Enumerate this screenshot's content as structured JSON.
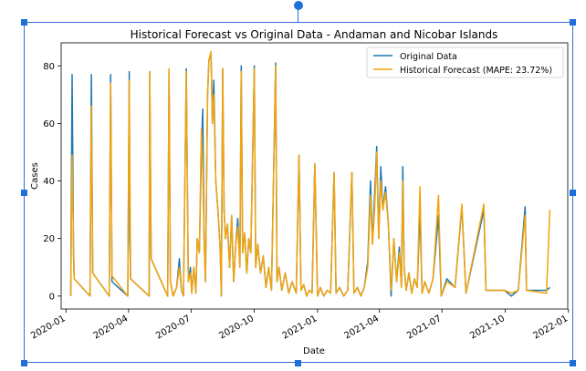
{
  "chart_data": {
    "type": "line",
    "title": "Historical Forecast vs Original Data - Andaman  and Nicobar Islands",
    "xlabel": "Date",
    "ylabel": "Cases",
    "xlim": [
      "2019-12-25",
      "2021-12-31"
    ],
    "ylim": [
      -4.5,
      88
    ],
    "yticks": [
      0,
      20,
      40,
      60,
      80
    ],
    "xticks": [
      {
        "date": "2020-01-01",
        "label": "2020-01"
      },
      {
        "date": "2020-04-01",
        "label": "2020-04"
      },
      {
        "date": "2020-07-01",
        "label": "2020-07"
      },
      {
        "date": "2020-10-01",
        "label": "2020-10"
      },
      {
        "date": "2021-01-01",
        "label": "2021-01"
      },
      {
        "date": "2021-04-01",
        "label": "2021-04"
      },
      {
        "date": "2021-07-01",
        "label": "2021-07"
      },
      {
        "date": "2021-10-01",
        "label": "2021-10"
      },
      {
        "date": "2022-01-01",
        "label": "2022-01"
      }
    ],
    "legend_position": "top-right",
    "series": [
      {
        "name": "Original Data",
        "color": "#1f77b4",
        "points": [
          [
            "2020-01-08",
            0
          ],
          [
            "2020-01-10",
            77
          ],
          [
            "2020-01-12",
            14
          ],
          [
            "2020-01-13",
            6
          ],
          [
            "2020-02-05",
            0
          ],
          [
            "2020-02-07",
            77
          ],
          [
            "2020-02-09",
            8
          ],
          [
            "2020-03-04",
            0
          ],
          [
            "2020-03-06",
            77
          ],
          [
            "2020-03-08",
            5
          ],
          [
            "2020-03-31",
            0
          ],
          [
            "2020-04-02",
            78
          ],
          [
            "2020-04-03",
            20
          ],
          [
            "2020-04-04",
            6
          ],
          [
            "2020-05-01",
            0
          ],
          [
            "2020-05-02",
            78
          ],
          [
            "2020-05-04",
            13
          ],
          [
            "2020-05-28",
            0
          ],
          [
            "2020-05-30",
            78
          ],
          [
            "2020-06-01",
            5
          ],
          [
            "2020-06-05",
            0
          ],
          [
            "2020-06-10",
            3
          ],
          [
            "2020-06-14",
            13
          ],
          [
            "2020-06-17",
            2
          ],
          [
            "2020-06-20",
            0
          ],
          [
            "2020-06-24",
            79
          ],
          [
            "2020-06-27",
            5
          ],
          [
            "2020-06-30",
            10
          ],
          [
            "2020-07-02",
            1
          ],
          [
            "2020-07-05",
            10
          ],
          [
            "2020-07-08",
            1
          ],
          [
            "2020-07-10",
            20
          ],
          [
            "2020-07-13",
            15
          ],
          [
            "2020-07-16",
            50
          ],
          [
            "2020-07-18",
            65
          ],
          [
            "2020-07-20",
            20
          ],
          [
            "2020-07-22",
            5
          ],
          [
            "2020-07-25",
            70
          ],
          [
            "2020-07-27",
            82
          ],
          [
            "2020-07-30",
            84
          ],
          [
            "2020-08-01",
            60
          ],
          [
            "2020-08-03",
            75
          ],
          [
            "2020-08-06",
            40
          ],
          [
            "2020-08-09",
            30
          ],
          [
            "2020-08-12",
            18
          ],
          [
            "2020-08-14",
            0
          ],
          [
            "2020-08-16",
            79
          ],
          [
            "2020-08-18",
            30
          ],
          [
            "2020-08-20",
            20
          ],
          [
            "2020-08-23",
            25
          ],
          [
            "2020-08-26",
            10
          ],
          [
            "2020-08-29",
            28
          ],
          [
            "2020-09-01",
            5
          ],
          [
            "2020-09-04",
            18
          ],
          [
            "2020-09-07",
            27
          ],
          [
            "2020-09-10",
            10
          ],
          [
            "2020-09-12",
            80
          ],
          [
            "2020-09-14",
            15
          ],
          [
            "2020-09-17",
            22
          ],
          [
            "2020-09-20",
            8
          ],
          [
            "2020-09-23",
            20
          ],
          [
            "2020-09-26",
            15
          ],
          [
            "2020-10-01",
            80
          ],
          [
            "2020-10-03",
            10
          ],
          [
            "2020-10-06",
            18
          ],
          [
            "2020-10-10",
            8
          ],
          [
            "2020-10-14",
            14
          ],
          [
            "2020-10-18",
            3
          ],
          [
            "2020-10-22",
            10
          ],
          [
            "2020-10-26",
            2
          ],
          [
            "2020-11-01",
            81
          ],
          [
            "2020-11-03",
            5
          ],
          [
            "2020-11-06",
            10
          ],
          [
            "2020-11-10",
            2
          ],
          [
            "2020-11-15",
            8
          ],
          [
            "2020-11-20",
            1
          ],
          [
            "2020-11-25",
            5
          ],
          [
            "2020-12-01",
            1
          ],
          [
            "2020-12-05",
            49
          ],
          [
            "2020-12-08",
            2
          ],
          [
            "2020-12-12",
            4
          ],
          [
            "2020-12-16",
            0
          ],
          [
            "2020-12-20",
            2
          ],
          [
            "2020-12-24",
            1
          ],
          [
            "2020-12-28",
            46
          ],
          [
            "2021-01-01",
            0
          ],
          [
            "2021-01-05",
            3
          ],
          [
            "2021-01-10",
            0
          ],
          [
            "2021-01-15",
            2
          ],
          [
            "2021-01-20",
            1
          ],
          [
            "2021-01-25",
            43
          ],
          [
            "2021-01-28",
            1
          ],
          [
            "2021-02-02",
            3
          ],
          [
            "2021-02-08",
            0
          ],
          [
            "2021-02-14",
            2
          ],
          [
            "2021-02-20",
            43
          ],
          [
            "2021-02-23",
            1
          ],
          [
            "2021-02-28",
            3
          ],
          [
            "2021-03-05",
            0
          ],
          [
            "2021-03-10",
            3
          ],
          [
            "2021-03-15",
            12
          ],
          [
            "2021-03-19",
            40
          ],
          [
            "2021-03-22",
            18
          ],
          [
            "2021-03-25",
            35
          ],
          [
            "2021-03-28",
            52
          ],
          [
            "2021-03-31",
            20
          ],
          [
            "2021-04-03",
            45
          ],
          [
            "2021-04-06",
            30
          ],
          [
            "2021-04-10",
            38
          ],
          [
            "2021-04-14",
            25
          ],
          [
            "2021-04-18",
            0
          ],
          [
            "2021-04-22",
            20
          ],
          [
            "2021-04-26",
            5
          ],
          [
            "2021-04-30",
            17
          ],
          [
            "2021-05-03",
            3
          ],
          [
            "2021-05-05",
            45
          ],
          [
            "2021-05-07",
            10
          ],
          [
            "2021-05-10",
            2
          ],
          [
            "2021-05-14",
            8
          ],
          [
            "2021-05-18",
            1
          ],
          [
            "2021-05-22",
            6
          ],
          [
            "2021-05-26",
            3
          ],
          [
            "2021-05-30",
            30
          ],
          [
            "2021-06-02",
            1
          ],
          [
            "2021-06-06",
            5
          ],
          [
            "2021-06-12",
            1
          ],
          [
            "2021-06-18",
            6
          ],
          [
            "2021-06-26",
            28
          ],
          [
            "2021-06-30",
            0
          ],
          [
            "2021-07-08",
            6
          ],
          [
            "2021-07-20",
            3
          ],
          [
            "2021-07-30",
            31
          ],
          [
            "2021-08-05",
            1
          ],
          [
            "2021-08-31",
            30
          ],
          [
            "2021-09-03",
            2
          ],
          [
            "2021-09-30",
            2
          ],
          [
            "2021-10-10",
            0
          ],
          [
            "2021-10-20",
            2
          ],
          [
            "2021-10-30",
            31
          ],
          [
            "2021-11-01",
            2
          ],
          [
            "2021-11-30",
            2
          ],
          [
            "2021-12-05",
            3
          ]
        ]
      },
      {
        "name": "Historical Forecast (MAPE: 23.72%)",
        "color": "#f4a40b",
        "points": [
          [
            "2020-01-08",
            0
          ],
          [
            "2020-01-10",
            49
          ],
          [
            "2020-01-12",
            18
          ],
          [
            "2020-01-13",
            6
          ],
          [
            "2020-02-05",
            0
          ],
          [
            "2020-02-07",
            66
          ],
          [
            "2020-02-09",
            8
          ],
          [
            "2020-03-04",
            0
          ],
          [
            "2020-03-06",
            74
          ],
          [
            "2020-03-08",
            7
          ],
          [
            "2020-03-31",
            0
          ],
          [
            "2020-04-02",
            75
          ],
          [
            "2020-04-04",
            6
          ],
          [
            "2020-05-01",
            0
          ],
          [
            "2020-05-02",
            78
          ],
          [
            "2020-05-04",
            13
          ],
          [
            "2020-05-28",
            0
          ],
          [
            "2020-05-30",
            79
          ],
          [
            "2020-06-01",
            5
          ],
          [
            "2020-06-05",
            0
          ],
          [
            "2020-06-10",
            3
          ],
          [
            "2020-06-14",
            10
          ],
          [
            "2020-06-17",
            2
          ],
          [
            "2020-06-20",
            0
          ],
          [
            "2020-06-24",
            78
          ],
          [
            "2020-06-27",
            5
          ],
          [
            "2020-06-30",
            8
          ],
          [
            "2020-07-02",
            1
          ],
          [
            "2020-07-05",
            10
          ],
          [
            "2020-07-08",
            1
          ],
          [
            "2020-07-10",
            20
          ],
          [
            "2020-07-13",
            15
          ],
          [
            "2020-07-16",
            58
          ],
          [
            "2020-07-18",
            45
          ],
          [
            "2020-07-20",
            20
          ],
          [
            "2020-07-22",
            5
          ],
          [
            "2020-07-25",
            70
          ],
          [
            "2020-07-27",
            82
          ],
          [
            "2020-07-30",
            85
          ],
          [
            "2020-08-01",
            60
          ],
          [
            "2020-08-03",
            70
          ],
          [
            "2020-08-06",
            40
          ],
          [
            "2020-08-09",
            30
          ],
          [
            "2020-08-12",
            18
          ],
          [
            "2020-08-14",
            0
          ],
          [
            "2020-08-16",
            79
          ],
          [
            "2020-08-18",
            30
          ],
          [
            "2020-08-20",
            20
          ],
          [
            "2020-08-23",
            25
          ],
          [
            "2020-08-26",
            10
          ],
          [
            "2020-08-29",
            28
          ],
          [
            "2020-09-01",
            5
          ],
          [
            "2020-09-04",
            18
          ],
          [
            "2020-09-07",
            24
          ],
          [
            "2020-09-10",
            10
          ],
          [
            "2020-09-12",
            78
          ],
          [
            "2020-09-14",
            15
          ],
          [
            "2020-09-17",
            22
          ],
          [
            "2020-09-20",
            8
          ],
          [
            "2020-09-23",
            20
          ],
          [
            "2020-09-26",
            15
          ],
          [
            "2020-10-01",
            79
          ],
          [
            "2020-10-03",
            10
          ],
          [
            "2020-10-06",
            18
          ],
          [
            "2020-10-10",
            8
          ],
          [
            "2020-10-14",
            14
          ],
          [
            "2020-10-18",
            3
          ],
          [
            "2020-10-22",
            10
          ],
          [
            "2020-10-26",
            2
          ],
          [
            "2020-11-01",
            80
          ],
          [
            "2020-11-03",
            5
          ],
          [
            "2020-11-06",
            10
          ],
          [
            "2020-11-10",
            2
          ],
          [
            "2020-11-15",
            8
          ],
          [
            "2020-11-20",
            1
          ],
          [
            "2020-11-25",
            5
          ],
          [
            "2020-12-01",
            1
          ],
          [
            "2020-12-05",
            49
          ],
          [
            "2020-12-08",
            2
          ],
          [
            "2020-12-12",
            4
          ],
          [
            "2020-12-16",
            0
          ],
          [
            "2020-12-20",
            2
          ],
          [
            "2020-12-24",
            1
          ],
          [
            "2020-12-28",
            46
          ],
          [
            "2021-01-01",
            0
          ],
          [
            "2021-01-05",
            3
          ],
          [
            "2021-01-10",
            0
          ],
          [
            "2021-01-15",
            2
          ],
          [
            "2021-01-20",
            1
          ],
          [
            "2021-01-25",
            43
          ],
          [
            "2021-01-28",
            1
          ],
          [
            "2021-02-02",
            3
          ],
          [
            "2021-02-08",
            0
          ],
          [
            "2021-02-14",
            2
          ],
          [
            "2021-02-20",
            43
          ],
          [
            "2021-02-23",
            1
          ],
          [
            "2021-02-28",
            3
          ],
          [
            "2021-03-05",
            0
          ],
          [
            "2021-03-10",
            3
          ],
          [
            "2021-03-15",
            10
          ],
          [
            "2021-03-19",
            35
          ],
          [
            "2021-03-22",
            18
          ],
          [
            "2021-03-25",
            30
          ],
          [
            "2021-03-28",
            50
          ],
          [
            "2021-03-31",
            20
          ],
          [
            "2021-04-03",
            40
          ],
          [
            "2021-04-06",
            30
          ],
          [
            "2021-04-10",
            36
          ],
          [
            "2021-04-14",
            25
          ],
          [
            "2021-04-18",
            2
          ],
          [
            "2021-04-22",
            20
          ],
          [
            "2021-04-26",
            5
          ],
          [
            "2021-04-30",
            15
          ],
          [
            "2021-05-03",
            3
          ],
          [
            "2021-05-05",
            40
          ],
          [
            "2021-05-07",
            10
          ],
          [
            "2021-05-10",
            2
          ],
          [
            "2021-05-14",
            8
          ],
          [
            "2021-05-18",
            1
          ],
          [
            "2021-05-22",
            6
          ],
          [
            "2021-05-26",
            3
          ],
          [
            "2021-05-30",
            38
          ],
          [
            "2021-06-02",
            1
          ],
          [
            "2021-06-06",
            5
          ],
          [
            "2021-06-12",
            1
          ],
          [
            "2021-06-18",
            6
          ],
          [
            "2021-06-26",
            35
          ],
          [
            "2021-06-30",
            0
          ],
          [
            "2021-07-08",
            5
          ],
          [
            "2021-07-20",
            3
          ],
          [
            "2021-07-30",
            32
          ],
          [
            "2021-08-05",
            1
          ],
          [
            "2021-08-31",
            32
          ],
          [
            "2021-09-03",
            2
          ],
          [
            "2021-09-30",
            2
          ],
          [
            "2021-10-10",
            1
          ],
          [
            "2021-10-20",
            2
          ],
          [
            "2021-10-30",
            28
          ],
          [
            "2021-11-01",
            2
          ],
          [
            "2021-11-30",
            1
          ],
          [
            "2021-12-05",
            30
          ]
        ]
      }
    ]
  }
}
